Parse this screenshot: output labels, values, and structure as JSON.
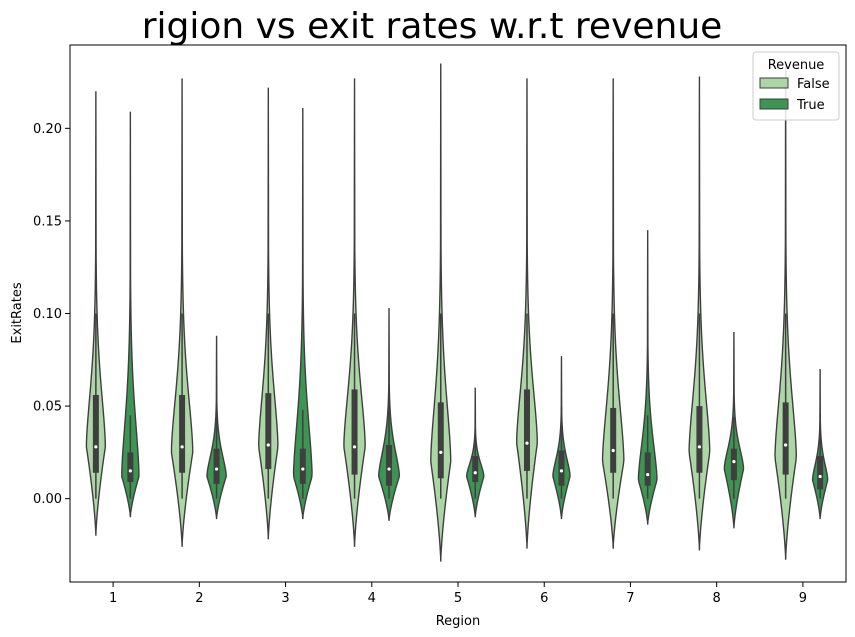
{
  "chart_data": {
    "type": "violin",
    "title": "rigion vs exit rates w.r.t revenue",
    "xlabel": "Region",
    "ylabel": "ExitRates",
    "ylim": [
      -0.045,
      0.245
    ],
    "yticks": [
      0.0,
      0.05,
      0.1,
      0.15,
      0.2
    ],
    "ytick_labels": [
      "0.00",
      "0.05",
      "0.10",
      "0.15",
      "0.20"
    ],
    "categories": [
      "1",
      "2",
      "3",
      "4",
      "5",
      "6",
      "7",
      "8",
      "9"
    ],
    "legend": {
      "title": "Revenue",
      "placement": "top-right",
      "entries": [
        "False",
        "True"
      ]
    },
    "colors": {
      "False": "#acd6a5",
      "True": "#3d9553",
      "edge": "#3f3f3f"
    },
    "series": [
      {
        "name": "False",
        "min": [
          -0.02,
          -0.026,
          -0.022,
          -0.026,
          -0.034,
          -0.027,
          -0.027,
          -0.028,
          -0.033
        ],
        "max": [
          0.22,
          0.227,
          0.222,
          0.227,
          0.235,
          0.227,
          0.227,
          0.228,
          0.235
        ],
        "q1": [
          0.014,
          0.014,
          0.016,
          0.013,
          0.011,
          0.015,
          0.014,
          0.014,
          0.013
        ],
        "median": [
          0.028,
          0.028,
          0.029,
          0.028,
          0.025,
          0.03,
          0.026,
          0.028,
          0.029
        ],
        "q3": [
          0.056,
          0.056,
          0.057,
          0.059,
          0.052,
          0.059,
          0.049,
          0.05,
          0.052
        ],
        "whisker_low": [
          0.0,
          0.0,
          0.0,
          0.0,
          0.0,
          0.0,
          0.0,
          0.0,
          0.0
        ],
        "whisker_high": [
          0.1,
          0.1,
          0.1,
          0.1,
          0.1,
          0.1,
          0.1,
          0.1,
          0.1
        ],
        "peak_width": [
          0.55,
          0.62,
          0.56,
          0.62,
          0.58,
          0.6,
          0.62,
          0.6,
          0.62
        ],
        "mode": [
          0.028,
          0.025,
          0.028,
          0.028,
          0.02,
          0.03,
          0.02,
          0.025,
          0.022
        ]
      },
      {
        "name": "True",
        "min": [
          -0.01,
          -0.011,
          -0.011,
          -0.012,
          -0.01,
          -0.011,
          -0.014,
          -0.016,
          -0.011
        ],
        "max": [
          0.209,
          0.088,
          0.211,
          0.103,
          0.06,
          0.077,
          0.145,
          0.09,
          0.07
        ],
        "q1": [
          0.009,
          0.008,
          0.008,
          0.007,
          0.009,
          0.007,
          0.007,
          0.01,
          0.005
        ],
        "median": [
          0.015,
          0.016,
          0.016,
          0.016,
          0.014,
          0.015,
          0.013,
          0.02,
          0.012
        ],
        "q3": [
          0.025,
          0.027,
          0.027,
          0.029,
          0.023,
          0.026,
          0.025,
          0.027,
          0.023
        ],
        "whisker_low": [
          0.0,
          0.0,
          0.0,
          0.0,
          0.0,
          0.0,
          0.0,
          0.0,
          0.0
        ],
        "whisker_high": [
          0.045,
          0.05,
          0.048,
          0.055,
          0.043,
          0.05,
          0.045,
          0.044,
          0.046
        ],
        "peak_width": [
          0.5,
          0.56,
          0.54,
          0.6,
          0.5,
          0.5,
          0.54,
          0.56,
          0.44
        ],
        "mode": [
          0.012,
          0.012,
          0.012,
          0.012,
          0.012,
          0.012,
          0.01,
          0.016,
          0.01
        ]
      }
    ]
  }
}
